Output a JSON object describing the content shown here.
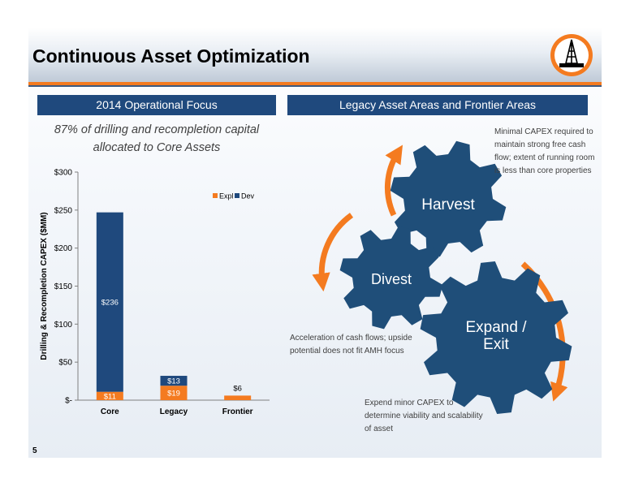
{
  "slide": {
    "title": "Continuous Asset Optimization",
    "page_number": "5"
  },
  "left": {
    "banner": "2014 Operational Focus",
    "caption_line1": "87% of drilling  and recompletion capital",
    "caption_line2": "allocated to Core Assets"
  },
  "right": {
    "banner": "Legacy Asset Areas and Frontier Areas",
    "gears": {
      "harvest": "Harvest",
      "divest": "Divest",
      "expand_line1": "Expand /",
      "expand_line2": "Exit"
    },
    "notes": {
      "harvest": [
        "Minimal CAPEX required to",
        "maintain strong free cash",
        "flow; extent of running room",
        "is less than core properties"
      ],
      "divest": [
        "Acceleration of cash flows; upside",
        "potential does not fit AMH focus"
      ],
      "expand": [
        "Expend minor CAPEX to",
        "determine viability and scalability",
        "of asset"
      ]
    }
  },
  "colors": {
    "navy": "#1f497d",
    "gear": "#1f4e79",
    "orange": "#f47b20",
    "dev": "#1f497d",
    "expl": "#f47b20"
  },
  "chart_data": {
    "type": "bar",
    "stacked": true,
    "categories": [
      "Core",
      "Legacy",
      "Frontier"
    ],
    "series": [
      {
        "name": "Expl",
        "values": [
          11,
          19,
          6
        ],
        "labels": [
          "$11",
          "$19",
          "$6"
        ]
      },
      {
        "name": "Dev",
        "values": [
          236,
          13,
          0
        ],
        "labels": [
          "$236",
          "$13",
          ""
        ]
      }
    ],
    "ylabel": "Drilling & Recompletion CAPEX ($MM)",
    "ylim": [
      0,
      300
    ],
    "yticks": [
      0,
      50,
      100,
      150,
      200,
      250,
      300
    ],
    "ytick_labels": [
      "$-",
      "$50",
      "$100",
      "$150",
      "$200",
      "$250",
      "$300"
    ],
    "legend": "top-right",
    "grid": false
  }
}
